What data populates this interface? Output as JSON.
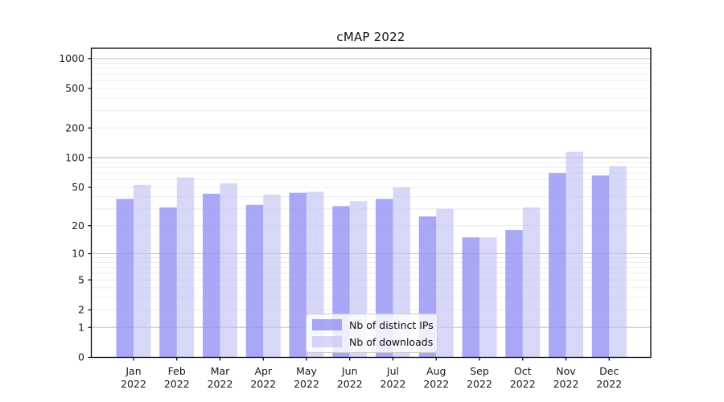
{
  "chart_data": {
    "type": "bar",
    "title": "cMAP 2022",
    "categories": [
      "Jan 2022",
      "Feb 2022",
      "Mar 2022",
      "Apr 2022",
      "May 2022",
      "Jun 2022",
      "Jul 2022",
      "Aug 2022",
      "Sep 2022",
      "Oct 2022",
      "Nov 2022",
      "Dec 2022"
    ],
    "series": [
      {
        "name": "Nb of distinct IPs",
        "color": "rgba(140,140,243,0.76)",
        "values": [
          38,
          31,
          43,
          33,
          44,
          32,
          38,
          25,
          15,
          18,
          70,
          66
        ]
      },
      {
        "name": "Nb of downloads",
        "color": "rgba(190,190,243,0.62)",
        "values": [
          53,
          63,
          55,
          42,
          45,
          36,
          50,
          30,
          15,
          31,
          115,
          82
        ]
      }
    ],
    "xlabel": "",
    "ylabel": "",
    "yscale": "symlog (log1p)",
    "ylim": [
      0,
      1240
    ],
    "y_ticks": [
      0,
      1,
      2,
      5,
      10,
      20,
      50,
      100,
      200,
      500,
      1000
    ],
    "grid": "horizontal, major decades dark + minor faint",
    "legend_position": "lower center inside plot",
    "colors": {
      "major_grid": "#c3c3c3",
      "minor_grid": "#ececec",
      "axis": "#000000",
      "text": "#1a1a1a"
    }
  }
}
